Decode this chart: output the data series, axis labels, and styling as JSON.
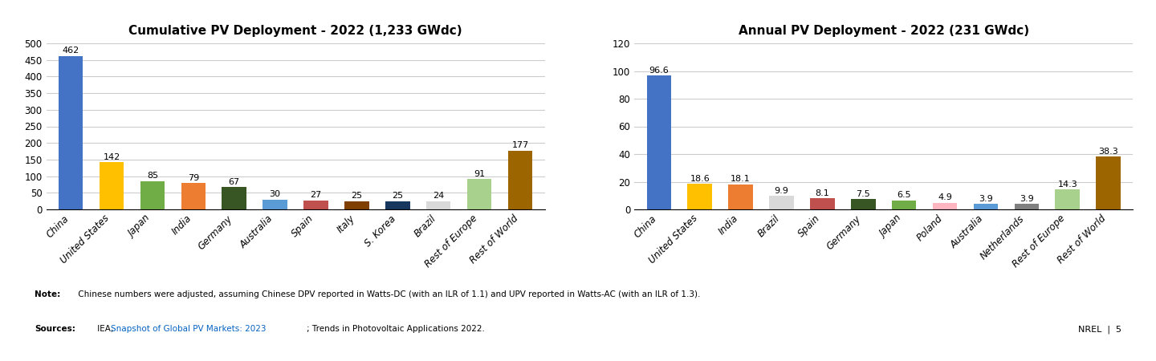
{
  "left_title": "Cumulative PV Deployment - 2022 (1,233 GWdc)",
  "left_categories": [
    "China",
    "United States",
    "Japan",
    "India",
    "Germany",
    "Australia",
    "Spain",
    "Italy",
    "S. Korea",
    "Brazil",
    "Rest of Europe",
    "Rest of World"
  ],
  "left_values": [
    462,
    142,
    85,
    79,
    67,
    30,
    27,
    25,
    25,
    24,
    91,
    177
  ],
  "left_colors": [
    "#4472C4",
    "#FFC000",
    "#70AD47",
    "#ED7D31",
    "#375623",
    "#5B9BD5",
    "#C0504D",
    "#7F3F00",
    "#17375E",
    "#D9D9D9",
    "#A9D18E",
    "#9C6500"
  ],
  "left_ylim": [
    0,
    500
  ],
  "left_yticks": [
    0,
    50,
    100,
    150,
    200,
    250,
    300,
    350,
    400,
    450,
    500
  ],
  "right_title": "Annual PV Deployment - 2022 (231 GWdc)",
  "right_categories": [
    "China",
    "United States",
    "India",
    "Brazil",
    "Spain",
    "Germany",
    "Japan",
    "Poland",
    "Australia",
    "Netherlands",
    "Rest of Europe",
    "Rest of World"
  ],
  "right_values": [
    96.6,
    18.6,
    18.1,
    9.9,
    8.1,
    7.5,
    6.5,
    4.9,
    3.9,
    3.9,
    14.3,
    38.3
  ],
  "right_colors": [
    "#4472C4",
    "#FFC000",
    "#ED7D31",
    "#D9D9D9",
    "#C0504D",
    "#375623",
    "#70AD47",
    "#FFB6C1",
    "#5B9BD5",
    "#808080",
    "#A9D18E",
    "#9C6500"
  ],
  "right_ylim": [
    0,
    120
  ],
  "right_yticks": [
    0,
    20,
    40,
    60,
    80,
    100,
    120
  ],
  "note_bold": "Note:",
  "note_rest": " Chinese numbers were adjusted, assuming Chinese DPV reported in Watts-DC (with an ILR of 1.1) and UPV reported in Watts-AC (with an ILR of 1.3).",
  "sources_bold": "Sources:",
  "sources_pre_link": " IEA, ",
  "sources_link": "Snapshot of Global PV Markets: 2023",
  "sources_post_link": "; Trends in Photovoltaic Applications 2022.",
  "nrel_text": "NREL  |  5",
  "bg_color": "#FFFFFF",
  "grid_color": "#CCCCCC",
  "bar_width": 0.6,
  "link_color": "#0563C1"
}
